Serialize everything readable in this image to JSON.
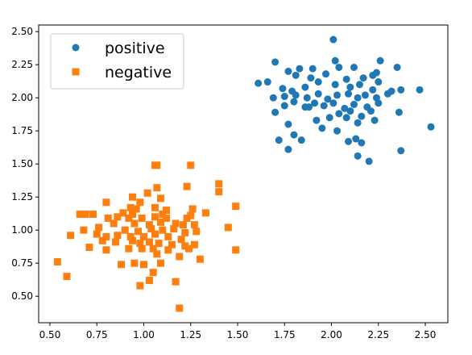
{
  "chart_data": {
    "type": "scatter",
    "title": "",
    "xlabel": "",
    "ylabel": "",
    "xlim": [
      0.44,
      2.62
    ],
    "ylim": [
      0.3,
      2.55
    ],
    "xticks": [
      0.5,
      0.75,
      1.0,
      1.25,
      1.5,
      1.75,
      2.0,
      2.25,
      2.5
    ],
    "xtick_labels": [
      "0.50",
      "0.75",
      "1.00",
      "1.25",
      "1.50",
      "1.75",
      "2.00",
      "2.25",
      "2.50"
    ],
    "yticks": [
      0.5,
      0.75,
      1.0,
      1.25,
      1.5,
      1.75,
      2.0,
      2.25,
      2.5
    ],
    "ytick_labels": [
      "0.50",
      "0.75",
      "1.00",
      "1.25",
      "1.50",
      "1.75",
      "2.00",
      "2.25",
      "2.50"
    ],
    "grid": false,
    "legend_position": "top-left",
    "series": [
      {
        "name": "positive",
        "marker": "circle",
        "color": "#1f77b4",
        "points": [
          [
            2.01,
            2.44
          ],
          [
            1.7,
            2.27
          ],
          [
            2.02,
            2.28
          ],
          [
            2.26,
            2.28
          ],
          [
            1.77,
            2.2
          ],
          [
            1.83,
            2.22
          ],
          [
            1.9,
            2.22
          ],
          [
            2.04,
            2.23
          ],
          [
            2.12,
            2.23
          ],
          [
            2.24,
            2.19
          ],
          [
            2.35,
            2.23
          ],
          [
            1.61,
            2.11
          ],
          [
            1.66,
            2.12
          ],
          [
            1.81,
            2.17
          ],
          [
            1.89,
            2.15
          ],
          [
            1.97,
            2.18
          ],
          [
            2.08,
            2.14
          ],
          [
            2.17,
            2.15
          ],
          [
            2.22,
            2.17
          ],
          [
            1.74,
            2.07
          ],
          [
            1.79,
            2.05
          ],
          [
            1.86,
            2.08
          ],
          [
            1.93,
            2.12
          ],
          [
            2.02,
            2.1
          ],
          [
            2.1,
            2.08
          ],
          [
            2.15,
            2.1
          ],
          [
            2.22,
            2.06
          ],
          [
            2.25,
            2.12
          ],
          [
            2.32,
            2.05
          ],
          [
            2.37,
            2.06
          ],
          [
            2.47,
            2.06
          ],
          [
            1.69,
            2.0
          ],
          [
            1.75,
            2.01
          ],
          [
            1.81,
            2.02
          ],
          [
            1.87,
            2.0
          ],
          [
            1.93,
            2.03
          ],
          [
            1.98,
            1.99
          ],
          [
            2.03,
            2.02
          ],
          [
            2.09,
            2.03
          ],
          [
            2.14,
            2.0
          ],
          [
            2.18,
            2.02
          ],
          [
            2.24,
            2.0
          ],
          [
            2.3,
            2.03
          ],
          [
            1.75,
            1.94
          ],
          [
            1.8,
            1.97
          ],
          [
            1.86,
            1.93
          ],
          [
            1.91,
            1.96
          ],
          [
            1.96,
            1.94
          ],
          [
            2.01,
            1.96
          ],
          [
            2.07,
            1.92
          ],
          [
            2.12,
            1.95
          ],
          [
            2.19,
            1.93
          ],
          [
            2.25,
            1.96
          ],
          [
            1.7,
            1.89
          ],
          [
            1.88,
            1.93
          ],
          [
            2.04,
            1.88
          ],
          [
            2.1,
            1.9
          ],
          [
            2.16,
            1.86
          ],
          [
            2.21,
            1.9
          ],
          [
            2.36,
            1.89
          ],
          [
            1.92,
            1.83
          ],
          [
            1.99,
            1.85
          ],
          [
            2.08,
            1.85
          ],
          [
            2.14,
            1.81
          ],
          [
            2.23,
            1.83
          ],
          [
            1.77,
            1.8
          ],
          [
            1.95,
            1.77
          ],
          [
            2.03,
            1.75
          ],
          [
            1.8,
            1.72
          ],
          [
            2.53,
            1.78
          ],
          [
            1.72,
            1.68
          ],
          [
            1.84,
            1.68
          ],
          [
            2.09,
            1.67
          ],
          [
            2.13,
            1.69
          ],
          [
            2.16,
            1.66
          ],
          [
            1.77,
            1.61
          ],
          [
            2.37,
            1.6
          ],
          [
            2.14,
            1.56
          ],
          [
            2.2,
            1.52
          ]
        ]
      },
      {
        "name": "negative",
        "marker": "square",
        "color": "#ff7f0e",
        "points": [
          [
            1.06,
            1.49
          ],
          [
            1.07,
            1.49
          ],
          [
            1.25,
            1.49
          ],
          [
            1.4,
            1.35
          ],
          [
            1.23,
            1.33
          ],
          [
            1.07,
            1.32
          ],
          [
            1.4,
            1.29
          ],
          [
            1.02,
            1.28
          ],
          [
            0.94,
            1.25
          ],
          [
            1.09,
            1.24
          ],
          [
            0.8,
            1.21
          ],
          [
            0.98,
            1.21
          ],
          [
            1.49,
            1.18
          ],
          [
            0.93,
            1.17
          ],
          [
            0.96,
            1.16
          ],
          [
            1.06,
            1.17
          ],
          [
            1.12,
            1.15
          ],
          [
            1.26,
            1.16
          ],
          [
            0.66,
            1.12
          ],
          [
            0.69,
            1.12
          ],
          [
            0.73,
            1.12
          ],
          [
            0.89,
            1.13
          ],
          [
            0.94,
            1.12
          ],
          [
            1.1,
            1.12
          ],
          [
            1.25,
            1.11
          ],
          [
            1.33,
            1.13
          ],
          [
            0.81,
            1.09
          ],
          [
            0.86,
            1.1
          ],
          [
            0.92,
            1.09
          ],
          [
            0.99,
            1.09
          ],
          [
            1.06,
            1.1
          ],
          [
            1.12,
            1.09
          ],
          [
            1.23,
            1.09
          ],
          [
            0.84,
            1.05
          ],
          [
            0.95,
            1.05
          ],
          [
            1.03,
            1.04
          ],
          [
            1.09,
            1.06
          ],
          [
            1.17,
            1.05
          ],
          [
            1.21,
            1.04
          ],
          [
            1.27,
            1.04
          ],
          [
            1.45,
            1.02
          ],
          [
            0.68,
            1.0
          ],
          [
            0.76,
            1.02
          ],
          [
            0.9,
            1.0
          ],
          [
            0.97,
            0.99
          ],
          [
            1.04,
            1.01
          ],
          [
            1.1,
            1.0
          ],
          [
            1.16,
            1.01
          ],
          [
            1.22,
            0.98
          ],
          [
            1.28,
            0.99
          ],
          [
            0.61,
            0.96
          ],
          [
            0.75,
            0.97
          ],
          [
            0.8,
            0.95
          ],
          [
            0.86,
            0.96
          ],
          [
            0.93,
            0.95
          ],
          [
            1.0,
            0.95
          ],
          [
            1.06,
            0.97
          ],
          [
            1.13,
            0.95
          ],
          [
            1.2,
            0.93
          ],
          [
            0.78,
            0.92
          ],
          [
            0.85,
            0.91
          ],
          [
            0.94,
            0.92
          ],
          [
            0.98,
            0.9
          ],
          [
            1.03,
            0.91
          ],
          [
            1.08,
            0.9
          ],
          [
            1.15,
            0.89
          ],
          [
            1.22,
            0.88
          ],
          [
            1.27,
            0.89
          ],
          [
            0.71,
            0.87
          ],
          [
            0.8,
            0.85
          ],
          [
            0.92,
            0.86
          ],
          [
            0.99,
            0.86
          ],
          [
            1.05,
            0.86
          ],
          [
            1.13,
            0.85
          ],
          [
            1.24,
            0.86
          ],
          [
            1.49,
            0.85
          ],
          [
            1.07,
            0.82
          ],
          [
            1.19,
            0.8
          ],
          [
            1.3,
            0.78
          ],
          [
            0.95,
            0.75
          ],
          [
            1.0,
            0.74
          ],
          [
            1.09,
            0.75
          ],
          [
            0.54,
            0.76
          ],
          [
            0.88,
            0.74
          ],
          [
            1.05,
            0.68
          ],
          [
            0.59,
            0.65
          ],
          [
            1.03,
            0.62
          ],
          [
            0.98,
            0.58
          ],
          [
            1.17,
            0.61
          ],
          [
            1.19,
            0.41
          ]
        ]
      }
    ]
  }
}
